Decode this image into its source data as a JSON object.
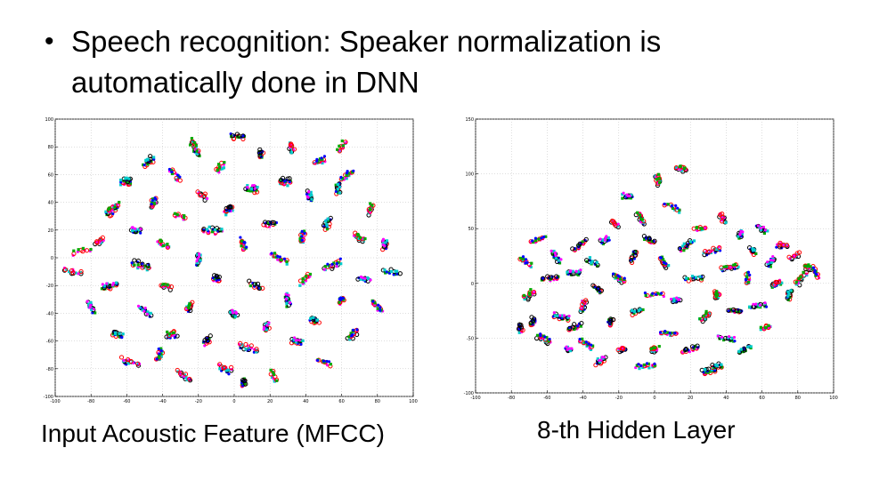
{
  "slide": {
    "bullet": "Speech recognition: Speaker normalization is automatically done in DNN"
  },
  "chart_data": [
    {
      "type": "scatter",
      "caption": "Input Acoustic Feature (MFCC)",
      "xlim": [
        -100,
        100
      ],
      "ylim": [
        -100,
        100
      ],
      "xticks": [
        -100,
        -80,
        -60,
        -40,
        -20,
        0,
        20,
        40,
        60,
        80,
        100
      ],
      "yticks": [
        -100,
        -80,
        -60,
        -40,
        -20,
        0,
        20,
        40,
        60,
        80,
        100
      ],
      "grid": true,
      "series_colors": [
        "#ff0000",
        "#00aa00",
        "#0000ff",
        "#000000",
        "#00cccc",
        "#ff00ff"
      ],
      "clusters": [
        [
          -85,
          5,
          3
        ],
        [
          -80,
          -35,
          5
        ],
        [
          -75,
          12,
          4
        ],
        [
          -70,
          -20,
          6
        ],
        [
          -68,
          35,
          8
        ],
        [
          -65,
          -55,
          5
        ],
        [
          -60,
          55,
          7
        ],
        [
          -55,
          20,
          5
        ],
        [
          -52,
          -5,
          6
        ],
        [
          -50,
          -38,
          4
        ],
        [
          -48,
          70,
          5
        ],
        [
          -45,
          40,
          6
        ],
        [
          -42,
          -70,
          5
        ],
        [
          -40,
          10,
          4
        ],
        [
          -38,
          -20,
          5
        ],
        [
          -35,
          -55,
          6
        ],
        [
          -33,
          60,
          5
        ],
        [
          -30,
          30,
          4
        ],
        [
          -28,
          -85,
          5
        ],
        [
          -25,
          -35,
          6
        ],
        [
          -22,
          80,
          7
        ],
        [
          -20,
          0,
          5
        ],
        [
          -18,
          45,
          4
        ],
        [
          -15,
          -60,
          5
        ],
        [
          -12,
          20,
          6
        ],
        [
          -10,
          -15,
          5
        ],
        [
          -8,
          65,
          4
        ],
        [
          -5,
          -80,
          5
        ],
        [
          -3,
          35,
          6
        ],
        [
          0,
          -40,
          5
        ],
        [
          2,
          88,
          4
        ],
        [
          5,
          10,
          5
        ],
        [
          8,
          -65,
          5
        ],
        [
          10,
          50,
          6
        ],
        [
          12,
          -20,
          4
        ],
        [
          15,
          75,
          5
        ],
        [
          18,
          -50,
          6
        ],
        [
          20,
          25,
          5
        ],
        [
          22,
          -85,
          4
        ],
        [
          25,
          0,
          5
        ],
        [
          28,
          55,
          6
        ],
        [
          30,
          -30,
          5
        ],
        [
          32,
          80,
          4
        ],
        [
          35,
          -60,
          6
        ],
        [
          38,
          15,
          5
        ],
        [
          40,
          -15,
          4
        ],
        [
          42,
          45,
          5
        ],
        [
          45,
          -45,
          6
        ],
        [
          48,
          70,
          5
        ],
        [
          50,
          -75,
          4
        ],
        [
          52,
          25,
          5
        ],
        [
          55,
          -5,
          6
        ],
        [
          58,
          50,
          5
        ],
        [
          60,
          -30,
          4
        ],
        [
          63,
          60,
          5
        ],
        [
          66,
          -55,
          6
        ],
        [
          70,
          15,
          5
        ],
        [
          73,
          -15,
          4
        ],
        [
          76,
          35,
          5
        ],
        [
          80,
          -35,
          5
        ],
        [
          84,
          10,
          6
        ],
        [
          88,
          -10,
          4
        ],
        [
          -90,
          -10,
          4
        ],
        [
          -58,
          -75,
          5
        ],
        [
          5,
          -90,
          5
        ],
        [
          60,
          80,
          4
        ]
      ]
    },
    {
      "type": "scatter",
      "caption": "8-th Hidden Layer",
      "xlim": [
        -100,
        100
      ],
      "ylim": [
        -100,
        150
      ],
      "xticks": [
        -100,
        -80,
        -60,
        -40,
        -20,
        0,
        20,
        40,
        60,
        80,
        100
      ],
      "yticks": [
        -100,
        -50,
        0,
        50,
        100,
        150
      ],
      "grid": true,
      "series_colors": [
        "#ff0000",
        "#00aa00",
        "#0000ff",
        "#000000",
        "#00cccc",
        "#ff00ff"
      ],
      "clusters": [
        [
          -75,
          -40,
          6
        ],
        [
          -72,
          20,
          5
        ],
        [
          -70,
          -10,
          5
        ],
        [
          -65,
          40,
          4
        ],
        [
          -62,
          -50,
          6
        ],
        [
          -58,
          5,
          5
        ],
        [
          -55,
          25,
          5
        ],
        [
          -52,
          -30,
          6
        ],
        [
          -48,
          -60,
          4
        ],
        [
          -45,
          10,
          5
        ],
        [
          -42,
          35,
          5
        ],
        [
          -40,
          -20,
          6
        ],
        [
          -38,
          -55,
          5
        ],
        [
          -35,
          20,
          4
        ],
        [
          -32,
          -5,
          5
        ],
        [
          -30,
          -70,
          6
        ],
        [
          -28,
          40,
          5
        ],
        [
          -25,
          -35,
          5
        ],
        [
          -22,
          55,
          4
        ],
        [
          -20,
          5,
          6
        ],
        [
          -18,
          -60,
          5
        ],
        [
          -15,
          80,
          5
        ],
        [
          -12,
          25,
          4
        ],
        [
          -10,
          -25,
          5
        ],
        [
          -8,
          60,
          6
        ],
        [
          -5,
          -75,
          5
        ],
        [
          -3,
          40,
          5
        ],
        [
          0,
          -10,
          4
        ],
        [
          2,
          95,
          5
        ],
        [
          5,
          20,
          6
        ],
        [
          8,
          -45,
          5
        ],
        [
          10,
          70,
          5
        ],
        [
          12,
          -15,
          4
        ],
        [
          15,
          105,
          5
        ],
        [
          18,
          35,
          6
        ],
        [
          20,
          -60,
          5
        ],
        [
          22,
          5,
          5
        ],
        [
          25,
          50,
          4
        ],
        [
          28,
          -30,
          5
        ],
        [
          30,
          -80,
          6
        ],
        [
          32,
          30,
          5
        ],
        [
          35,
          -10,
          5
        ],
        [
          38,
          60,
          4
        ],
        [
          40,
          -50,
          5
        ],
        [
          42,
          15,
          6
        ],
        [
          45,
          -25,
          5
        ],
        [
          48,
          45,
          5
        ],
        [
          50,
          -60,
          4
        ],
        [
          52,
          5,
          5
        ],
        [
          55,
          30,
          6
        ],
        [
          58,
          -20,
          5
        ],
        [
          60,
          50,
          5
        ],
        [
          62,
          -40,
          4
        ],
        [
          65,
          20,
          5
        ],
        [
          68,
          0,
          6
        ],
        [
          72,
          35,
          5
        ],
        [
          75,
          -10,
          5
        ],
        [
          78,
          25,
          4
        ],
        [
          82,
          5,
          5
        ],
        [
          86,
          15,
          5
        ],
        [
          90,
          10,
          4
        ],
        [
          -68,
          -35,
          5
        ],
        [
          -45,
          -40,
          5
        ],
        [
          0,
          -60,
          5
        ],
        [
          35,
          -75,
          5
        ]
      ]
    }
  ]
}
